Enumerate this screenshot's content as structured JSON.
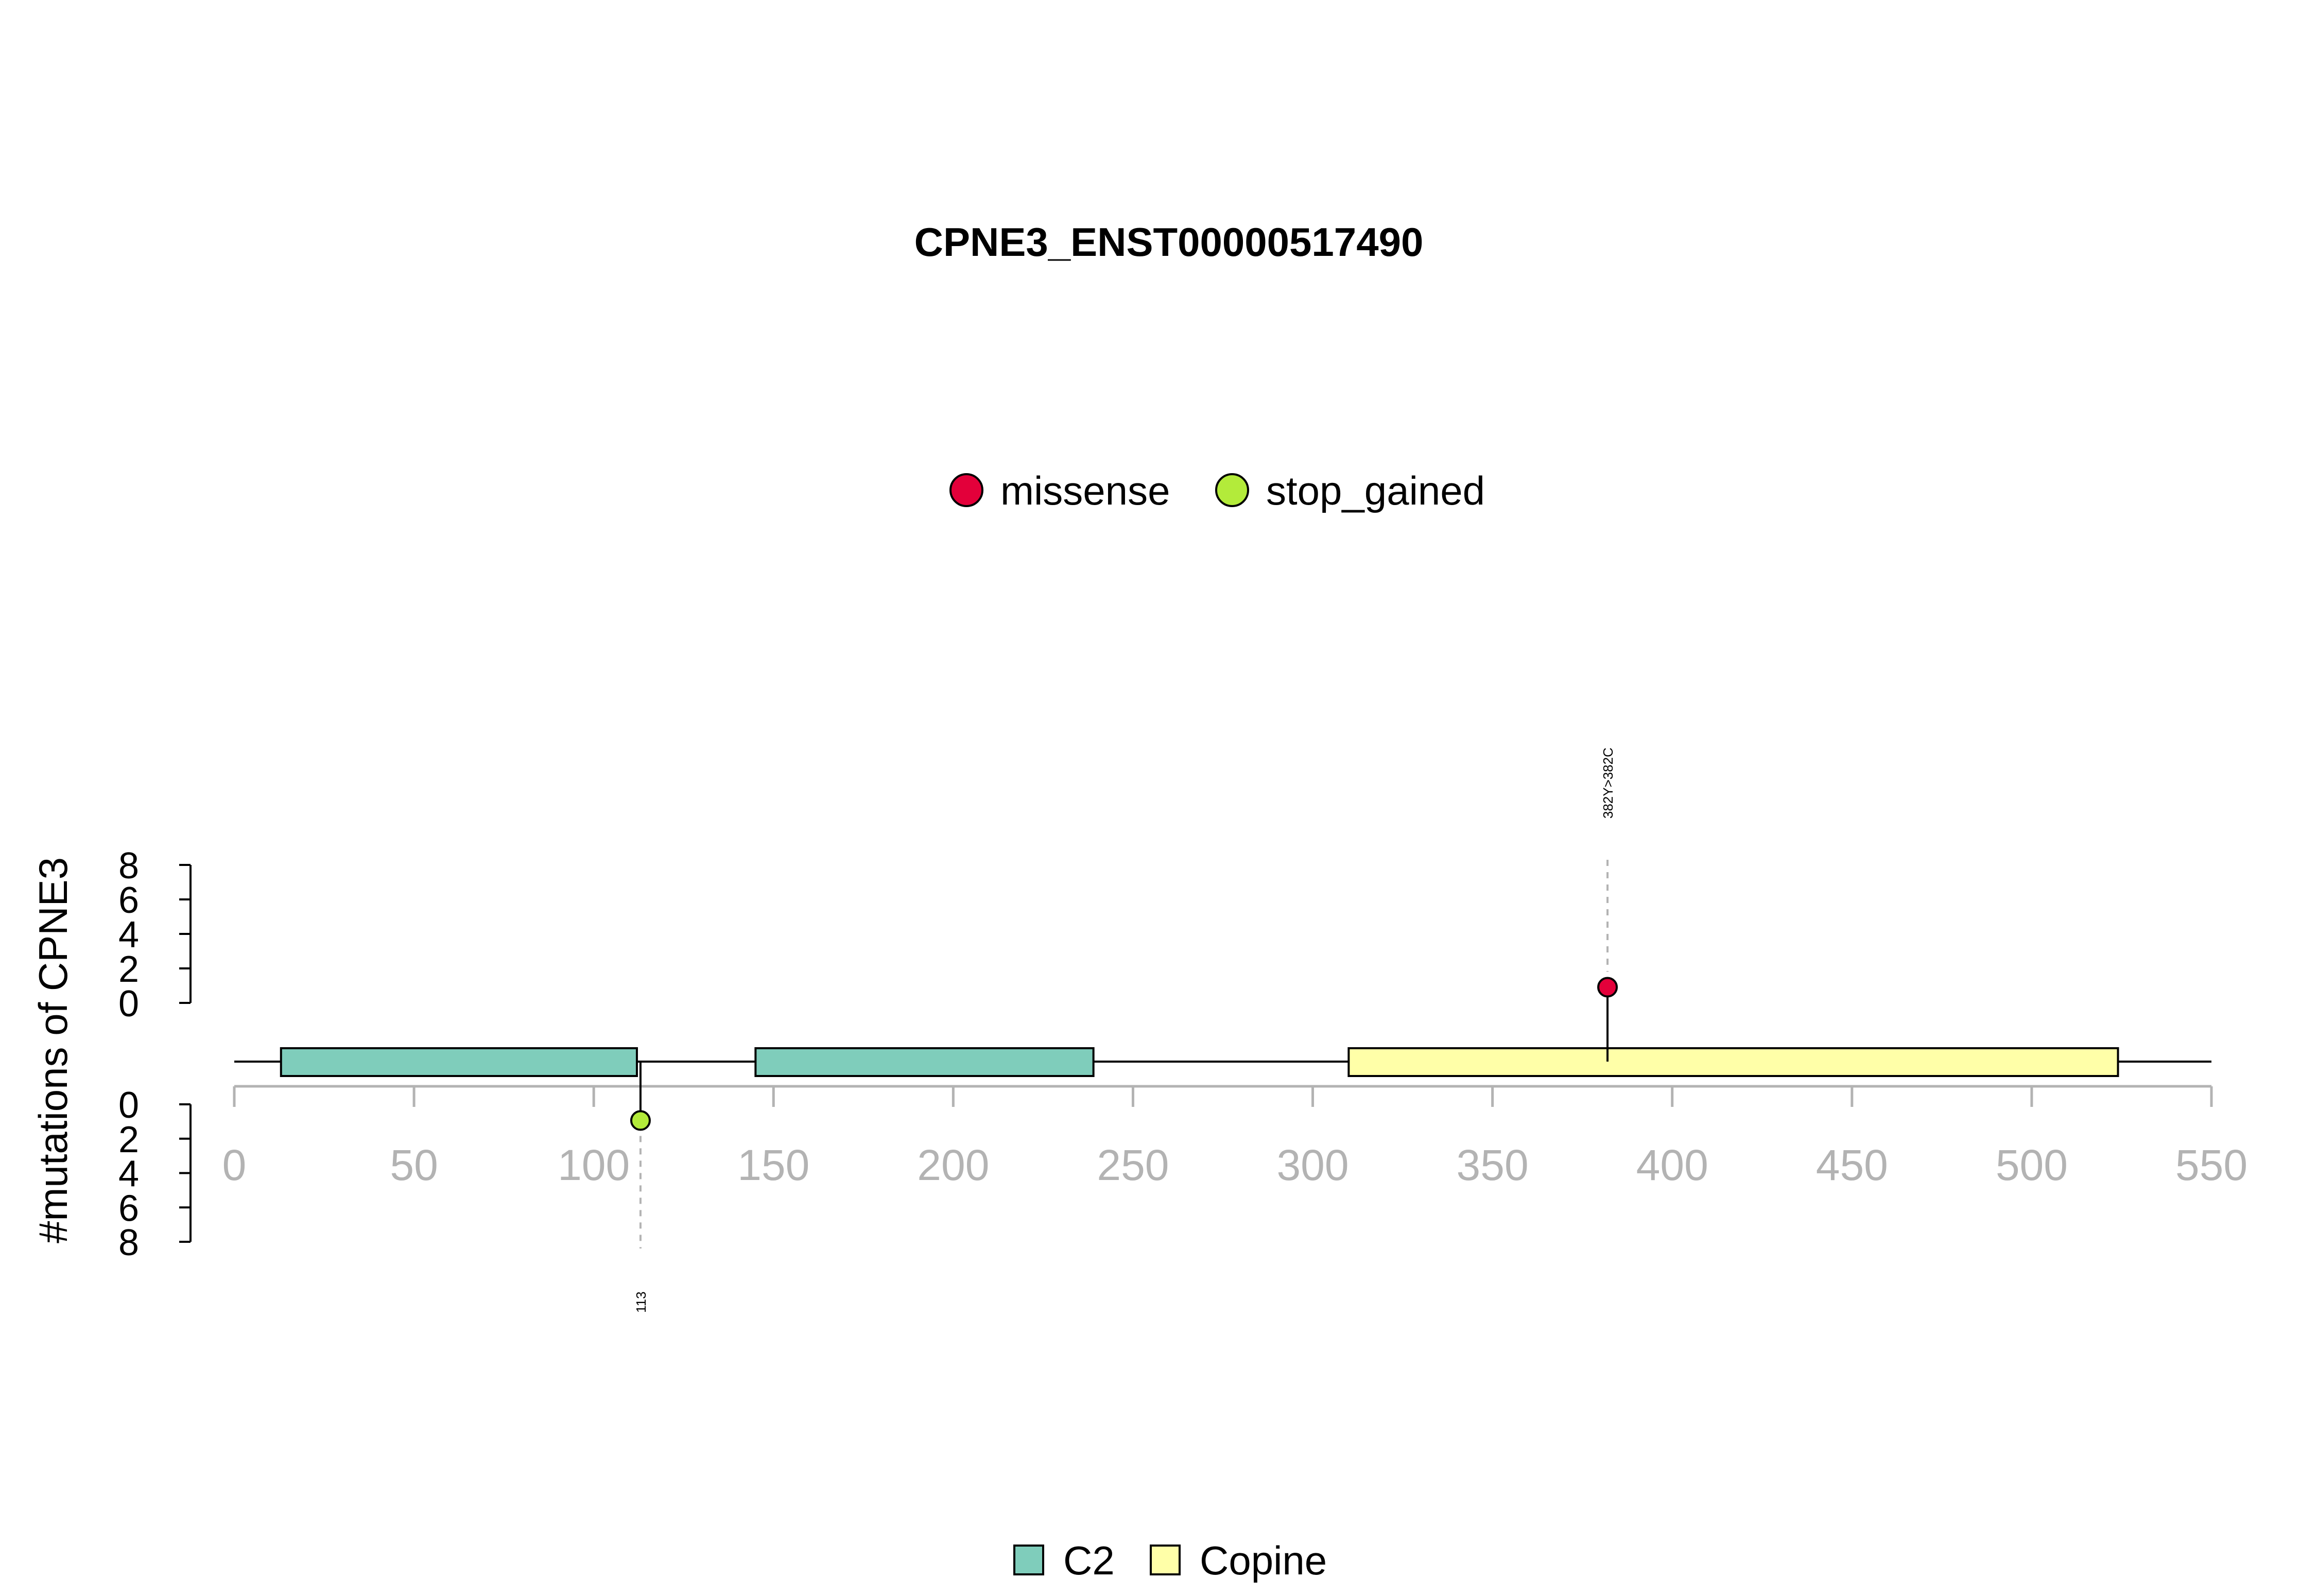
{
  "chart_data": {
    "type": "lollipop",
    "title": "CPNE3_ENST00000517490",
    "ylabel": "#mutations of CPNE3",
    "xlim": [
      0,
      550
    ],
    "xticks": [
      "0",
      "50",
      "100",
      "150",
      "200",
      "250",
      "300",
      "350",
      "400",
      "450",
      "500",
      "550"
    ],
    "ylim_upper": [
      0,
      8
    ],
    "ylim_lower": [
      0,
      8
    ],
    "yticks_upper": [
      "8",
      "6",
      "4",
      "2",
      "0"
    ],
    "yticks_lower": [
      "0",
      "2",
      "4",
      "6",
      "8"
    ],
    "mutation_legend": [
      {
        "label": "missense",
        "color": "#E3003A"
      },
      {
        "label": "stop_gained",
        "color": "#B3EB3A"
      }
    ],
    "domain_legend": [
      {
        "label": "C2",
        "color": "#7FCDBB"
      },
      {
        "label": "Copine",
        "color": "#FFFFA8"
      }
    ],
    "domains": [
      {
        "name": "C2",
        "start": 13,
        "end": 112,
        "color": "#7FCDBB"
      },
      {
        "name": "C2",
        "start": 145,
        "end": 239,
        "color": "#7FCDBB"
      },
      {
        "name": "Copine",
        "start": 310,
        "end": 524,
        "color": "#FFFFA8"
      }
    ],
    "mutations": [
      {
        "position": 382,
        "count": 1,
        "type": "missense",
        "strand": "upper",
        "label": "382Y>382C"
      },
      {
        "position": 113,
        "count": 1,
        "type": "stop_gained",
        "strand": "lower",
        "label": "113"
      }
    ]
  }
}
